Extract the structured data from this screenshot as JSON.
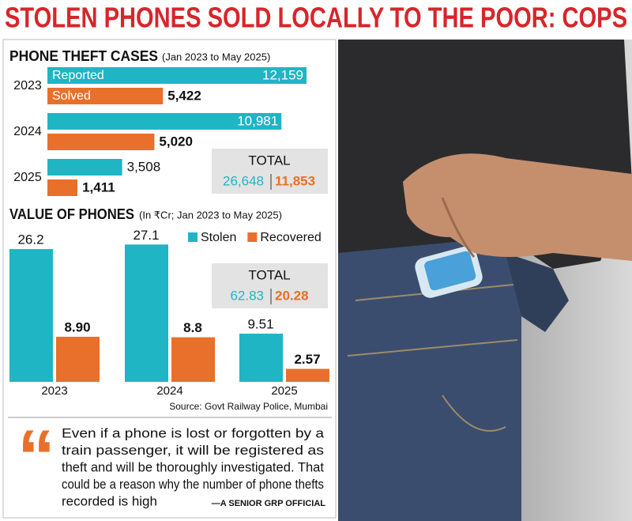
{
  "headline": "STOLEN PHONES SOLD LOCALLY TO THE POOR: COPS",
  "chart_data": [
    {
      "type": "hbar",
      "title": "PHONE THEFT CASES",
      "subtitle": "(Jan 2023 to May 2025)",
      "categories": [
        "2023",
        "2024",
        "2025"
      ],
      "series": [
        {
          "name": "Reported",
          "color": "#1fb5c4",
          "values": [
            12159,
            10981,
            3508
          ],
          "value_labels": [
            "12,159",
            "10,981",
            "3,508"
          ]
        },
        {
          "name": "Solved",
          "color": "#e8702a",
          "values": [
            5422,
            5020,
            1411
          ],
          "value_labels": [
            "5,422",
            "5,020",
            "1,411"
          ]
        }
      ],
      "totals": {
        "label": "TOTAL",
        "values": [
          26648,
          11853
        ],
        "value_labels": [
          "26,648",
          "11,853"
        ]
      }
    },
    {
      "type": "bar",
      "title": "VALUE OF PHONES",
      "subtitle": "(In ₹Cr; Jan 2023 to May 2025)",
      "categories": [
        "2023",
        "2024",
        "2025"
      ],
      "series": [
        {
          "name": "Stolen",
          "color": "#1fb5c4",
          "values": [
            26.2,
            27.1,
            9.51
          ]
        },
        {
          "name": "Recovered",
          "color": "#e8702a",
          "values": [
            8.9,
            8.8,
            2.57
          ],
          "value_labels": [
            "8.90",
            "8.8",
            "2.57"
          ]
        }
      ],
      "totals": {
        "label": "TOTAL",
        "values": [
          62.83,
          20.28
        ]
      },
      "source": "Source: Govt Railway Police, Mumbai"
    }
  ],
  "quote": {
    "lines": [
      "Even if a phone is lost or forgotten by a",
      "train passenger, it will be registered as",
      "theft and will be thoroughly investigated. That",
      "could be a reason why the number of phone thefts",
      "recorded is high"
    ],
    "attribution": "—A SENIOR GRP OFFICIAL"
  }
}
